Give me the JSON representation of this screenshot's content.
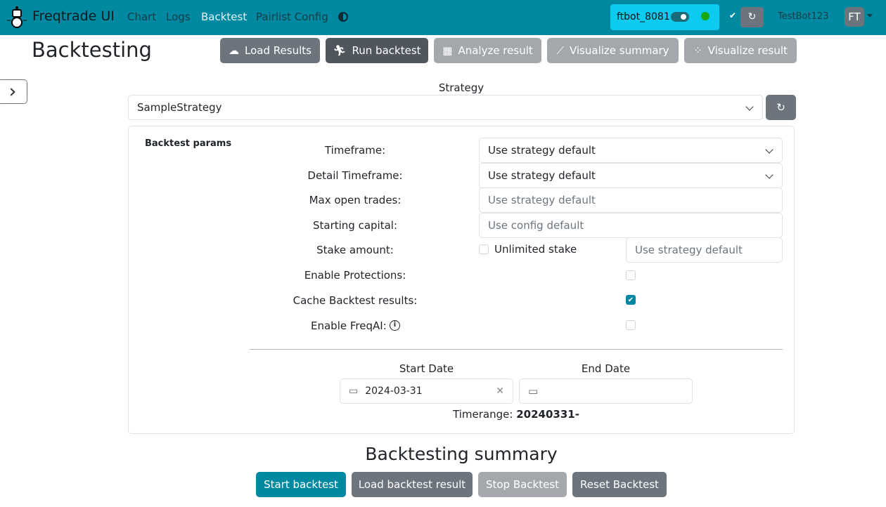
{
  "nav": {
    "brand": "Freqtrade UI",
    "links": [
      "Chart",
      "Logs",
      "Backtest",
      "Pairlist Config"
    ],
    "active": "Backtest",
    "bot_name": "ftbot_8081",
    "bot_status_color": "#1aa80c",
    "user": "TestBot123",
    "avatar": "FT"
  },
  "page": {
    "title": "Backtesting"
  },
  "toolbar": [
    "Load Results",
    "Run backtest",
    "Analyze result",
    "Visualize summary",
    "Visualize result"
  ],
  "strategy": {
    "label": "Strategy",
    "value": "SampleStrategy"
  },
  "params": {
    "heading": "Backtest params",
    "timeframe_label": "Timeframe:",
    "timeframe_value": "Use strategy default",
    "detail_label": "Detail Timeframe:",
    "detail_value": "Use strategy default",
    "max_label": "Max open trades:",
    "max_placeholder": "Use strategy default",
    "capital_label": "Starting capital:",
    "capital_placeholder": "Use config default",
    "stake_label": "Stake amount:",
    "unlimited_label": "Unlimited stake",
    "unlimited_checked": false,
    "stake_placeholder": "Use strategy default",
    "protections_label": "Enable Protections:",
    "protections_checked": false,
    "cache_label": "Cache Backtest results:",
    "cache_checked": true,
    "freqai_label": "Enable FreqAI:",
    "freqai_checked": false
  },
  "dates": {
    "start_label": "Start Date",
    "start_value": "2024-03-31",
    "end_label": "End Date",
    "end_value": "",
    "timerange_label": "Timerange:",
    "timerange_value": "20240331-"
  },
  "summary": {
    "title": "Backtesting summary",
    "buttons": [
      "Start backtest",
      "Load backtest result",
      "Stop Backtest",
      "Reset Backtest"
    ]
  }
}
